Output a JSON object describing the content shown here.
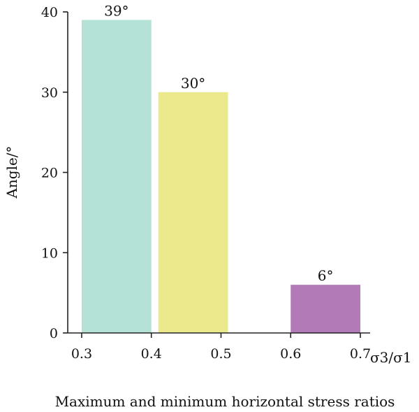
{
  "chart_data": {
    "type": "bar",
    "ylabel": "Angle/°",
    "xlabel": "Maximum and minimum horizontal stress ratios",
    "x_axis_end_label": "σ3/σ1",
    "ylim": [
      0,
      40
    ],
    "yticks": [
      0,
      10,
      20,
      30,
      40
    ],
    "xlim": [
      0.28,
      0.7
    ],
    "xticks": [
      0.3,
      0.4,
      0.5,
      0.6,
      0.7
    ],
    "xtick_labels": [
      "0.3",
      "0.4",
      "0.5",
      "0.6",
      "0.7"
    ],
    "grid": false,
    "legend": "none",
    "bars": [
      {
        "x_start": 0.3,
        "x_end": 0.4,
        "value": 39,
        "label": "39°",
        "color": "#b5e2d7"
      },
      {
        "x_start": 0.41,
        "x_end": 0.51,
        "value": 30,
        "label": "30°",
        "color": "#ece98c"
      },
      {
        "x_start": 0.6,
        "x_end": 0.7,
        "value": 6,
        "label": "6°",
        "color": "#b27ab7"
      }
    ]
  }
}
